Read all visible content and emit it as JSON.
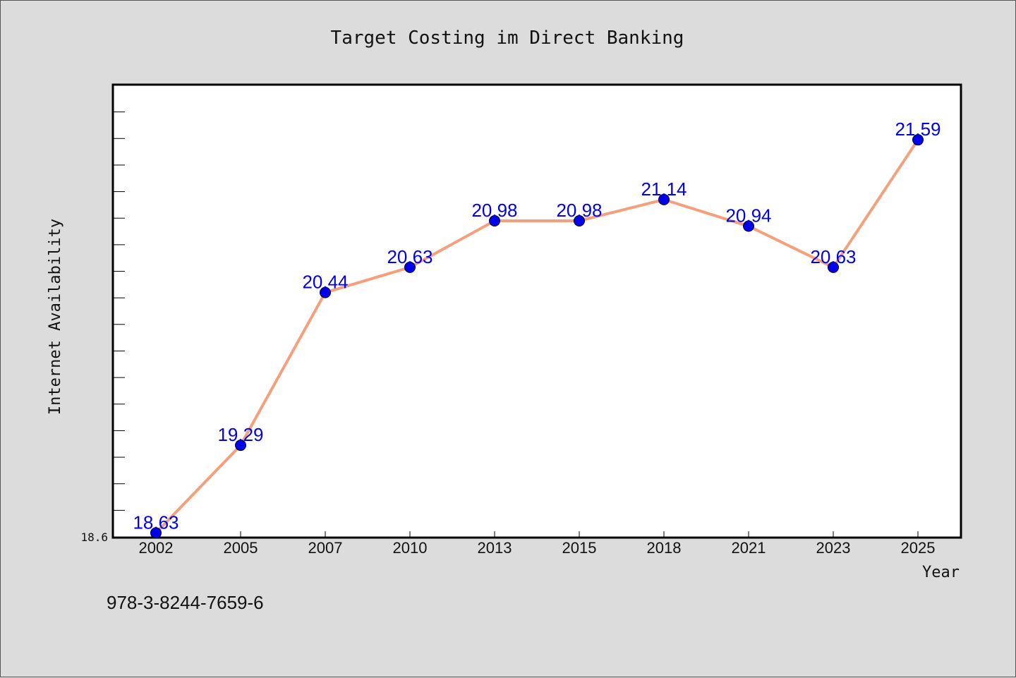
{
  "chart_data": {
    "type": "line",
    "title": "Target Costing im Direct Banking",
    "xlabel": "Year",
    "ylabel": "Internet Availability",
    "categories": [
      "2002",
      "2005",
      "2007",
      "2010",
      "2013",
      "2015",
      "2018",
      "2021",
      "2023",
      "2025"
    ],
    "series": [
      {
        "values": [
          18.63,
          19.29,
          20.44,
          20.63,
          20.98,
          20.98,
          21.14,
          20.94,
          20.63,
          21.59
        ]
      }
    ],
    "data_labels": [
      "18.63",
      "19.29",
      "20.44",
      "20.63",
      "20.98",
      "20.98",
      "21.14",
      "20.94",
      "20.63",
      "21.59"
    ],
    "ylim": [
      18.6,
      22.0
    ],
    "yticks_labeled": [
      "18.6"
    ],
    "grid": false,
    "legend": "none",
    "colors": {
      "line": "#f4a07c",
      "marker": "#0000ee",
      "data_label": "#0000ee",
      "plot_background": "#ffffff",
      "page_background": "#dcdcdc"
    }
  },
  "footer_note": "978-3-8244-7659-6"
}
